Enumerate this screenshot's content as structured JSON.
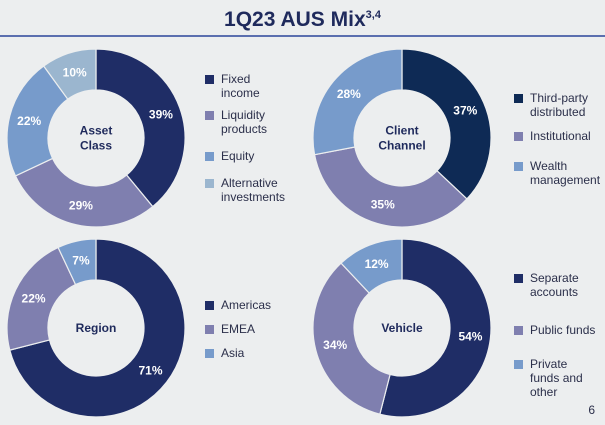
{
  "title_main": "1Q23 AUS Mix",
  "title_sup": "3,4",
  "page_number": "6",
  "chart_data": [
    {
      "type": "pie",
      "id": "asset-class",
      "title": "Asset Class",
      "title_lines": [
        "Asset",
        "Class"
      ],
      "categories": [
        "Fixed income",
        "Liquidity products",
        "Equity",
        "Alternative investments"
      ],
      "legend_lines": [
        [
          "Fixed",
          "income"
        ],
        [
          "Liquidity",
          "products"
        ],
        [
          "Equity"
        ],
        [
          "Alternative",
          "investments"
        ]
      ],
      "values": [
        39,
        29,
        22,
        10
      ],
      "labels": [
        "39%",
        "29%",
        "22%",
        "10%"
      ],
      "colors": [
        "#1F2D66",
        "#7F7FAF",
        "#779BCB",
        "#9BB6CF"
      ]
    },
    {
      "type": "pie",
      "id": "client-channel",
      "title": "Client Channel",
      "title_lines": [
        "Client",
        "Channel"
      ],
      "categories": [
        "Third-party distributed",
        "Institutional",
        "Wealth management"
      ],
      "legend_lines": [
        [
          "Third-party",
          "distributed"
        ],
        [
          "Institutional"
        ],
        [
          "Wealth",
          "management"
        ]
      ],
      "values": [
        37,
        35,
        28
      ],
      "labels": [
        "37%",
        "35%",
        "28%"
      ],
      "colors": [
        "#0E2A55",
        "#7F7FAF",
        "#779BCB"
      ]
    },
    {
      "type": "pie",
      "id": "region",
      "title": "Region",
      "title_lines": [
        "Region"
      ],
      "categories": [
        "Americas",
        "EMEA",
        "Asia"
      ],
      "legend_lines": [
        [
          "Americas"
        ],
        [
          "EMEA"
        ],
        [
          "Asia"
        ]
      ],
      "values": [
        71,
        22,
        7
      ],
      "labels": [
        "71%",
        "22%",
        "7%"
      ],
      "colors": [
        "#1F2D66",
        "#7F7FAF",
        "#779BCB"
      ]
    },
    {
      "type": "pie",
      "id": "vehicle",
      "title": "Vehicle",
      "title_lines": [
        "Vehicle"
      ],
      "categories": [
        "Separate accounts",
        "Public funds",
        "Private funds and other"
      ],
      "legend_lines": [
        [
          "Separate",
          "accounts"
        ],
        [
          "Public funds"
        ],
        [
          "Private",
          "funds and",
          "other"
        ]
      ],
      "values": [
        54,
        34,
        12
      ],
      "labels": [
        "54%",
        "34%",
        "12%"
      ],
      "colors": [
        "#1F2D66",
        "#7F7FAF",
        "#779BCB"
      ]
    }
  ]
}
